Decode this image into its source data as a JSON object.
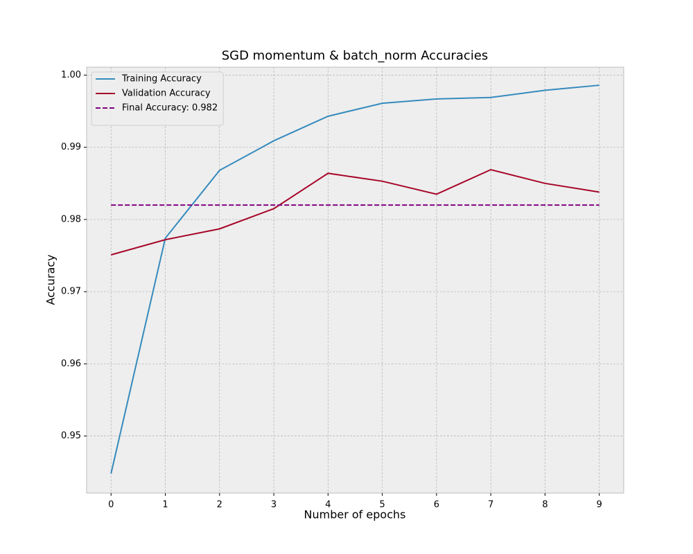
{
  "chart_data": {
    "type": "line",
    "title": "SGD momentum & batch_norm Accuracies",
    "xlabel": "Number of epochs",
    "ylabel": "Accuracy",
    "x": [
      0,
      1,
      2,
      3,
      4,
      5,
      6,
      7,
      8,
      9
    ],
    "series": [
      {
        "name": "Training Accuracy",
        "color": "#348ABD",
        "values": [
          0.9448,
          0.9774,
          0.9868,
          0.9909,
          0.9943,
          0.9961,
          0.9967,
          0.9969,
          0.9979,
          0.9986
        ]
      },
      {
        "name": "Validation Accuracy",
        "color": "#A60628",
        "values": [
          0.9751,
          0.9772,
          0.9787,
          0.9815,
          0.9864,
          0.9853,
          0.9835,
          0.9869,
          0.985,
          0.9838
        ]
      }
    ],
    "hlines": [
      {
        "name": "Final Accuracy: 0.982",
        "color": "purple",
        "value": 0.982
      }
    ],
    "xlim": [
      -0.45,
      9.45
    ],
    "xticks": [
      0,
      1,
      2,
      3,
      4,
      5,
      6,
      7,
      8,
      9
    ],
    "ylim": [
      0.9421,
      1.0011
    ],
    "yticks": [
      0.95,
      0.96,
      0.97,
      0.98,
      0.99,
      {
        "value": 1,
        "label": "1.00"
      }
    ],
    "grid": true,
    "legend": "upper left"
  }
}
